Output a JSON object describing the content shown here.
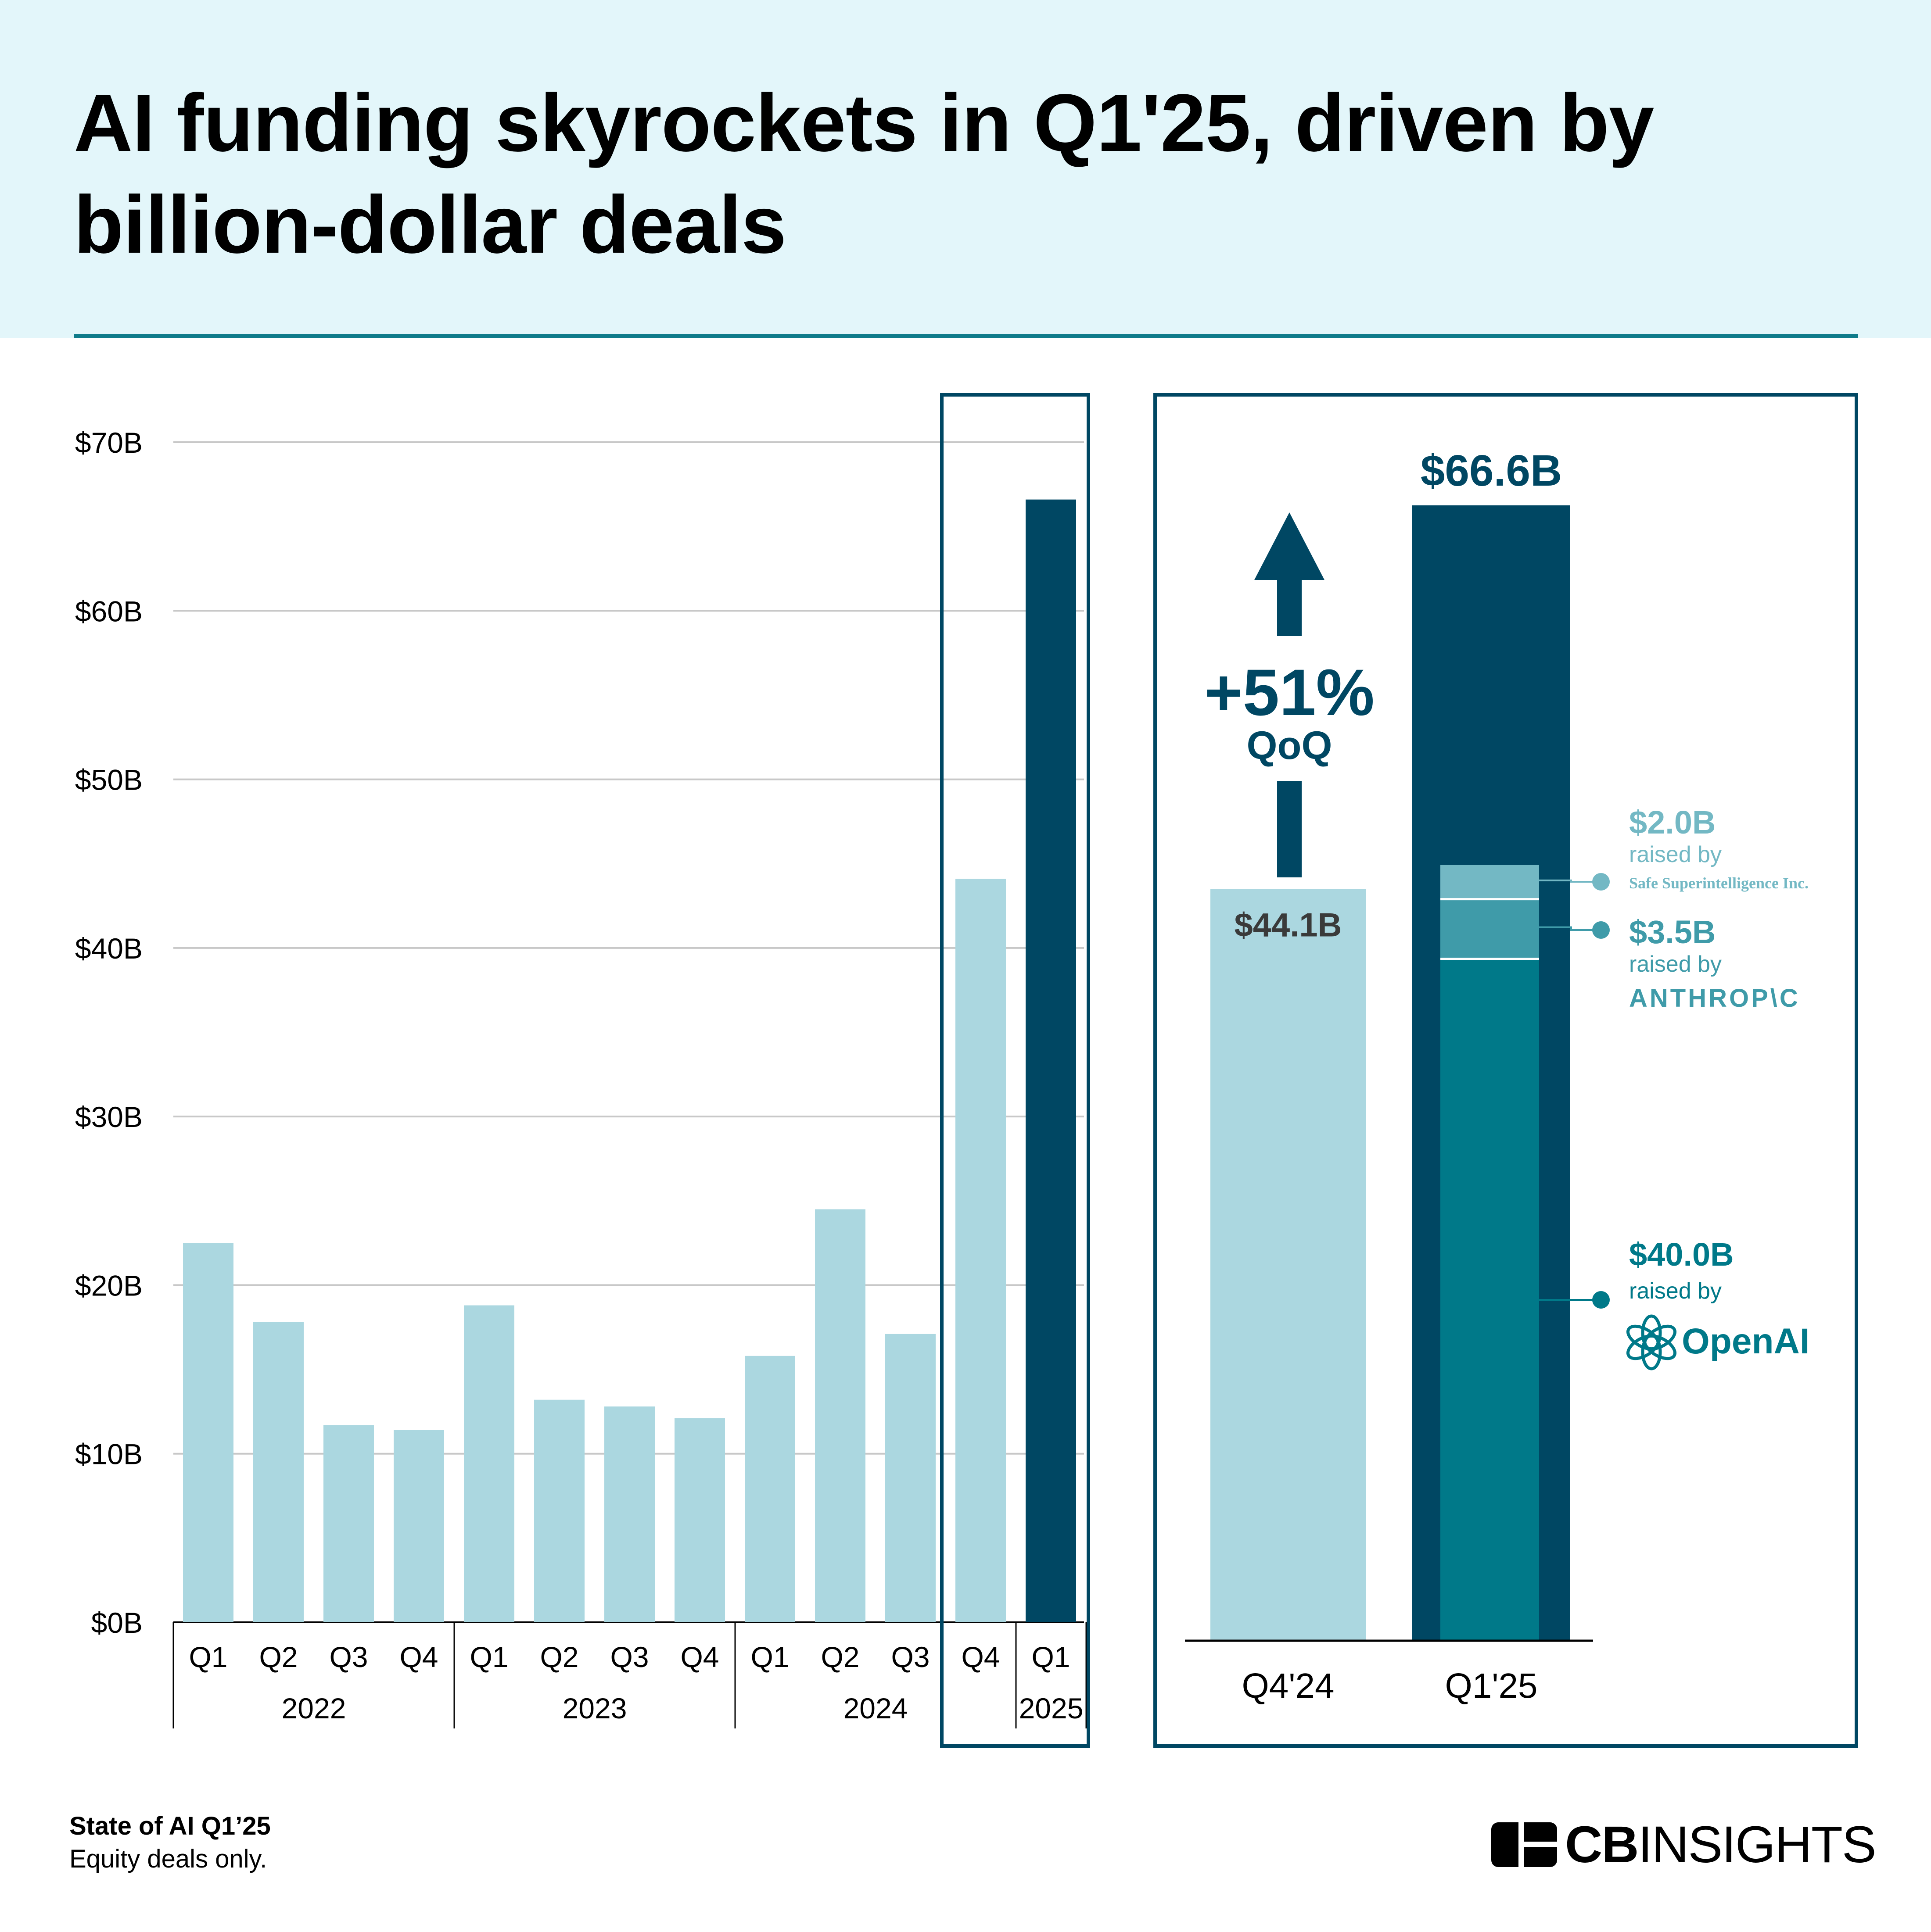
{
  "title": "AI funding skyrockets in Q1'25, driven by billion-dollar deals",
  "footer": {
    "source": "State of AI Q1’25",
    "note": "Equity deals only."
  },
  "brand": {
    "bold": "CB",
    "light": "INSIGHTS",
    "icon": "cb-insights-logo-icon"
  },
  "colors": {
    "header_bg": "#e3f6fa",
    "rule": "#0f7b8a",
    "light_bar": "#abd7e0",
    "dark_bar": "#004763",
    "openai": "#007989",
    "anthropic": "#3f9ba9",
    "ssi": "#73b8c4",
    "gridline": "#c8c8c8"
  },
  "chart_data": [
    {
      "type": "bar",
      "categories": [
        "Q1",
        "Q2",
        "Q3",
        "Q4",
        "Q1",
        "Q2",
        "Q3",
        "Q4",
        "Q1",
        "Q2",
        "Q3",
        "Q4",
        "Q1"
      ],
      "groups": [
        {
          "label": "2022",
          "span": 4
        },
        {
          "label": "2023",
          "span": 4
        },
        {
          "label": "2024",
          "span": 4
        },
        {
          "label": "2025",
          "span": 1
        }
      ],
      "values": [
        22.5,
        17.8,
        11.7,
        11.4,
        18.8,
        13.2,
        12.8,
        12.1,
        15.8,
        24.5,
        17.1,
        44.1,
        66.6
      ],
      "highlighted": [
        false,
        false,
        false,
        false,
        false,
        false,
        false,
        false,
        false,
        false,
        false,
        false,
        true
      ],
      "yticks": [
        "$0B",
        "$10B",
        "$20B",
        "$30B",
        "$40B",
        "$50B",
        "$60B",
        "$70B"
      ],
      "ylim": [
        0,
        70
      ],
      "grid": true,
      "callout_box": "last two bars"
    },
    {
      "type": "bar",
      "categories": [
        "Q4'24",
        "Q1'25"
      ],
      "values": [
        44.1,
        66.6
      ],
      "value_labels": [
        "$44.1B",
        "$66.6B"
      ],
      "change": {
        "value": "+51%",
        "label": "QoQ"
      },
      "breakdown": [
        {
          "company": "OpenAI",
          "amount": 40.0,
          "label": "$40.0B",
          "raised": "raised by"
        },
        {
          "company": "ANTHROP\\C",
          "amount": 3.5,
          "label": "$3.5B",
          "raised": "raised by"
        },
        {
          "company": "Safe Superintelligence Inc.",
          "amount": 2.0,
          "label": "$2.0B",
          "raised": "raised by"
        }
      ]
    }
  ]
}
